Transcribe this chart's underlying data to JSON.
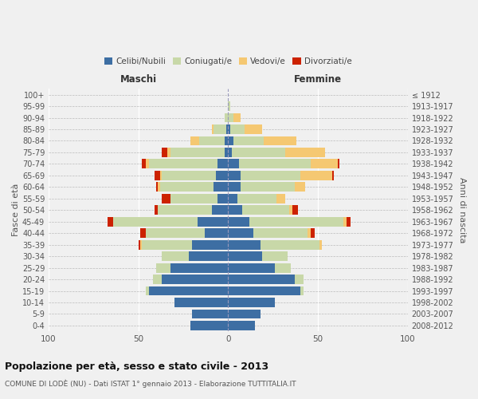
{
  "age_groups": [
    "0-4",
    "5-9",
    "10-14",
    "15-19",
    "20-24",
    "25-29",
    "30-34",
    "35-39",
    "40-44",
    "45-49",
    "50-54",
    "55-59",
    "60-64",
    "65-69",
    "70-74",
    "75-79",
    "80-84",
    "85-89",
    "90-94",
    "95-99",
    "100+"
  ],
  "birth_years": [
    "2008-2012",
    "2003-2007",
    "1998-2002",
    "1993-1997",
    "1988-1992",
    "1983-1987",
    "1978-1982",
    "1973-1977",
    "1968-1972",
    "1963-1967",
    "1958-1962",
    "1953-1957",
    "1948-1952",
    "1943-1947",
    "1938-1942",
    "1933-1937",
    "1928-1932",
    "1923-1927",
    "1918-1922",
    "1913-1917",
    "≤ 1912"
  ],
  "maschi": {
    "celibi": [
      21,
      20,
      30,
      44,
      37,
      32,
      22,
      20,
      13,
      17,
      9,
      6,
      8,
      7,
      6,
      2,
      2,
      1,
      0,
      0,
      0
    ],
    "coniugati": [
      0,
      0,
      0,
      2,
      5,
      8,
      15,
      28,
      33,
      47,
      30,
      26,
      30,
      30,
      38,
      30,
      14,
      7,
      2,
      0,
      0
    ],
    "vedovi": [
      0,
      0,
      0,
      0,
      0,
      0,
      0,
      1,
      0,
      0,
      0,
      0,
      1,
      1,
      2,
      2,
      5,
      1,
      0,
      0,
      0
    ],
    "divorziati": [
      0,
      0,
      0,
      0,
      0,
      0,
      0,
      1,
      3,
      3,
      2,
      5,
      1,
      3,
      2,
      3,
      0,
      0,
      0,
      0,
      0
    ]
  },
  "femmine": {
    "nubili": [
      15,
      18,
      26,
      40,
      37,
      26,
      19,
      18,
      14,
      12,
      8,
      5,
      7,
      7,
      6,
      2,
      3,
      1,
      0,
      0,
      0
    ],
    "coniugate": [
      0,
      0,
      0,
      2,
      5,
      9,
      14,
      33,
      30,
      52,
      26,
      22,
      30,
      33,
      40,
      30,
      17,
      8,
      3,
      1,
      0
    ],
    "vedove": [
      0,
      0,
      0,
      0,
      0,
      0,
      0,
      1,
      2,
      2,
      2,
      5,
      6,
      18,
      15,
      22,
      18,
      10,
      4,
      0,
      0
    ],
    "divorziate": [
      0,
      0,
      0,
      0,
      0,
      0,
      0,
      0,
      2,
      2,
      3,
      0,
      0,
      1,
      1,
      0,
      0,
      0,
      0,
      0,
      0
    ]
  },
  "colors": {
    "celibi": "#3d6ea3",
    "coniugati": "#c8d8a8",
    "vedovi": "#f5c872",
    "divorziati": "#cc2200"
  },
  "xlim": 100,
  "title": "Popolazione per età, sesso e stato civile - 2013",
  "subtitle": "COMUNE DI LODÈ (NU) - Dati ISTAT 1° gennaio 2013 - Elaborazione TUTTITALIA.IT",
  "ylabel_left": "Fasce di età",
  "ylabel_right": "Anni di nascita",
  "xlabel_maschi": "Maschi",
  "xlabel_femmine": "Femmine",
  "legend_labels": [
    "Celibi/Nubili",
    "Coniugati/e",
    "Vedovi/e",
    "Divorziati/e"
  ],
  "bg_color": "#f0f0f0",
  "bar_height": 0.82
}
